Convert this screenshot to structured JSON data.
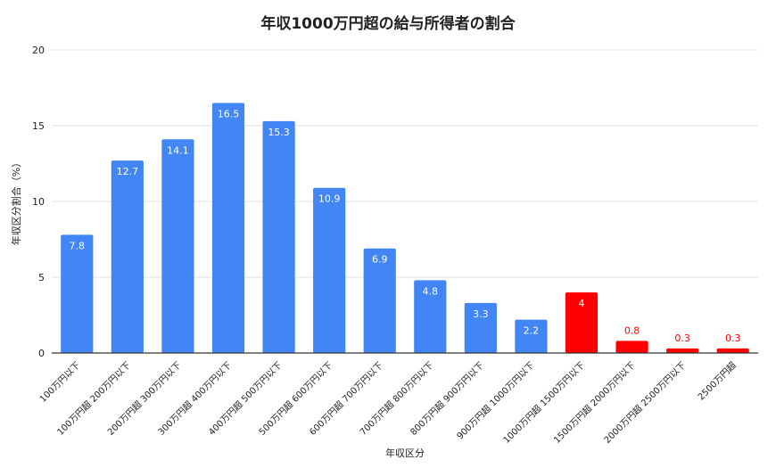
{
  "chart_data": {
    "type": "bar",
    "title": "年収1000万円超の給与所得者の割合",
    "xlabel": "年収区分",
    "ylabel": "年収区分割合（%）",
    "ylim": [
      0,
      20
    ],
    "yticks": [
      0,
      5,
      10,
      15,
      20
    ],
    "grid": true,
    "legend": "none",
    "categories": [
      "100万円以下",
      "100万円超 200万円以下",
      "200万円超 300万円以下",
      "300万円超 400万円以下",
      "400万円超 500万円以下",
      "500万円超 600万円以下",
      "600万円超 700万円以下",
      "700万円超 800万円以下",
      "800万円超 900万円以下",
      "900万円超 1000万円以下",
      "1000万円超 1500万円以下",
      "1500万円超 2000万円以下",
      "2000万円超 2500万円以下",
      "2500万円超"
    ],
    "values": [
      7.8,
      12.7,
      14.1,
      16.5,
      15.3,
      10.9,
      6.9,
      4.8,
      3.3,
      2.2,
      4,
      0.8,
      0.3,
      0.3
    ],
    "data_labels": [
      "7.8",
      "12.7",
      "14.1",
      "16.5",
      "15.3",
      "10.9",
      "6.9",
      "4.8",
      "3.3",
      "2.2",
      "4",
      "0.8",
      "0.3",
      "0.3"
    ],
    "highlighted_from_index": 10,
    "colors": {
      "base": "#4285f4",
      "highlight": "#ff0000",
      "grid": "#e0e0e0",
      "axis": "#333333",
      "text": "#222222",
      "label_inside": "#ffffff"
    }
  }
}
